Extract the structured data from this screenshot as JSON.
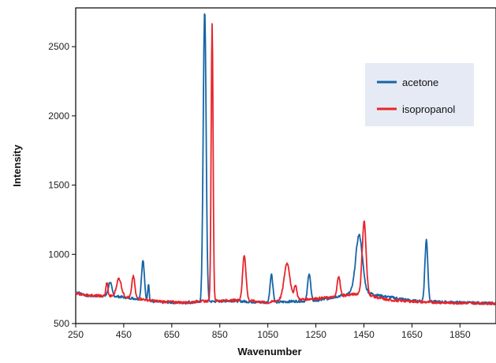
{
  "chart_data": {
    "type": "line",
    "xlabel": "Wavenumber",
    "ylabel": "Intensity",
    "xlim": [
      250,
      2000
    ],
    "ylim": [
      500,
      2780
    ],
    "x_ticks": [
      250,
      450,
      650,
      850,
      1050,
      1250,
      1450,
      1650,
      1850
    ],
    "y_ticks": [
      500,
      1000,
      1500,
      2000,
      2500
    ],
    "grid": false,
    "legend_position": "top-right",
    "colors": {
      "acetone": "#1565a8",
      "isopropanol": "#e8242a",
      "legend_bg": "#e6eaf4"
    },
    "series": [
      {
        "name": "acetone",
        "color": "#1565a8",
        "baseline": [
          [
            250,
            730
          ],
          [
            300,
            700
          ],
          [
            400,
            700
          ],
          [
            500,
            680
          ],
          [
            560,
            660
          ],
          [
            600,
            655
          ],
          [
            700,
            650
          ],
          [
            760,
            655
          ],
          [
            830,
            660
          ],
          [
            900,
            665
          ],
          [
            1000,
            655
          ],
          [
            1050,
            650
          ],
          [
            1100,
            655
          ],
          [
            1150,
            660
          ],
          [
            1250,
            665
          ],
          [
            1300,
            680
          ],
          [
            1350,
            700
          ],
          [
            1400,
            720
          ],
          [
            1470,
            720
          ],
          [
            1520,
            700
          ],
          [
            1600,
            680
          ],
          [
            1650,
            665
          ],
          [
            1700,
            660
          ],
          [
            1800,
            655
          ],
          [
            1900,
            650
          ],
          [
            2000,
            645
          ]
        ],
        "peaks": [
          [
            393,
            100,
            7
          ],
          [
            530,
            285,
            6
          ],
          [
            553,
            130,
            3
          ],
          [
            787,
            2100,
            6
          ],
          [
            1065,
            205,
            6
          ],
          [
            1222,
            200,
            6
          ],
          [
            1430,
            420,
            14
          ],
          [
            1710,
            445,
            6
          ]
        ],
        "values_note": ""
      },
      {
        "name": "isopropanol",
        "color": "#e8242a",
        "baseline": [
          [
            250,
            715
          ],
          [
            300,
            705
          ],
          [
            350,
            700
          ],
          [
            450,
            695
          ],
          [
            550,
            670
          ],
          [
            600,
            660
          ],
          [
            700,
            652
          ],
          [
            760,
            660
          ],
          [
            850,
            665
          ],
          [
            950,
            670
          ],
          [
            1000,
            660
          ],
          [
            1050,
            650
          ],
          [
            1100,
            670
          ],
          [
            1200,
            675
          ],
          [
            1250,
            680
          ],
          [
            1320,
            690
          ],
          [
            1400,
            710
          ],
          [
            1450,
            720
          ],
          [
            1500,
            690
          ],
          [
            1550,
            670
          ],
          [
            1650,
            660
          ],
          [
            1700,
            655
          ],
          [
            1800,
            650
          ],
          [
            2000,
            645
          ]
        ],
        "peaks": [
          [
            380,
            100,
            4
          ],
          [
            430,
            130,
            10
          ],
          [
            490,
            160,
            6
          ],
          [
            818,
            2010,
            4
          ],
          [
            952,
            325,
            7
          ],
          [
            1130,
            265,
            12
          ],
          [
            1165,
            100,
            6
          ],
          [
            1345,
            150,
            6
          ],
          [
            1451,
            520,
            8
          ]
        ],
        "values_note": ""
      }
    ]
  }
}
